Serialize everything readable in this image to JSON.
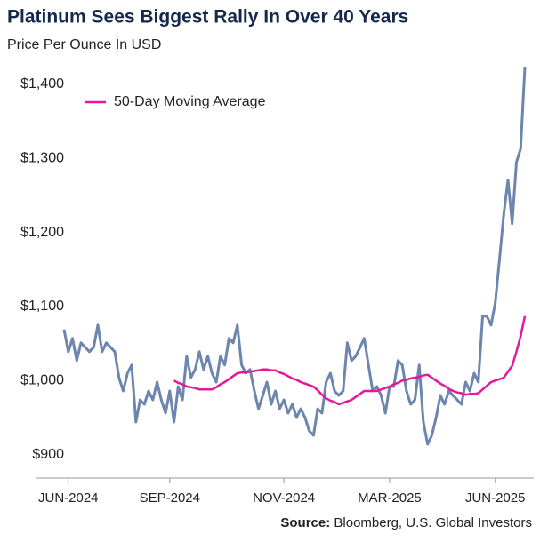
{
  "chart_data": {
    "type": "line",
    "title": "Platinum Sees Biggest Rally In Over 40 Years",
    "subtitle": "Price Per Ounce In USD",
    "source_label": "Source:",
    "source": "Bloomberg, U.S. Global Investors",
    "categories": [
      null,
      "JUN-2024",
      null,
      null,
      null,
      null,
      null,
      null,
      null,
      null,
      null,
      null,
      null,
      null,
      null,
      null,
      null,
      null,
      null,
      null,
      null,
      null,
      null,
      null,
      null,
      "SEP-2024",
      null,
      null,
      null,
      null,
      null,
      null,
      null,
      null,
      null,
      null,
      null,
      null,
      null,
      null,
      null,
      null,
      null,
      null,
      null,
      null,
      null,
      null,
      null,
      null,
      null,
      null,
      "NOV-2024",
      null,
      null,
      null,
      null,
      null,
      null,
      null,
      null,
      null,
      null,
      null,
      null,
      null,
      null,
      null,
      null,
      null,
      null,
      null,
      null,
      null,
      null,
      null,
      null,
      "MAR-2025",
      null,
      null,
      null,
      null,
      null,
      null,
      null,
      null,
      null,
      null,
      null,
      null,
      null,
      null,
      null,
      null,
      null,
      null,
      null,
      null,
      null,
      null,
      null,
      null,
      "JUN-2025",
      null,
      null,
      null,
      null,
      null,
      null,
      null
    ],
    "series": [
      {
        "color": "#6e86ad",
        "values": [
          1069,
          1039,
          1057,
          1027,
          1051,
          1045,
          1039,
          1045,
          1075,
          1039,
          1051,
          1045,
          1039,
          1004,
          986,
          1010,
          1021,
          944,
          974,
          968,
          986,
          974,
          998,
          974,
          956,
          986,
          944,
          992,
          974,
          1033,
          1004,
          1015,
          1039,
          1015,
          1033,
          1010,
          998,
          1033,
          1021,
          1057,
          1051,
          1075,
          1021,
          1010,
          1015,
          986,
          962,
          980,
          998,
          968,
          986,
          962,
          974,
          956,
          968,
          950,
          962,
          950,
          932,
          926,
          962,
          956,
          998,
          1010,
          986,
          980,
          986,
          1051,
          1027,
          1033,
          1045,
          1057,
          1021,
          986,
          992,
          980,
          956,
          992,
          992,
          1027,
          1021,
          986,
          968,
          974,
          1021,
          944,
          914,
          926,
          950,
          980,
          968,
          986,
          980,
          974,
          968,
          998,
          986,
          1010,
          998,
          1087,
          1087,
          1075,
          1105,
          1164,
          1224,
          1271,
          1212,
          1295,
          1313,
          1424
        ]
      },
      {
        "name": "50-Day Moving Average",
        "color": "#e5189b",
        "values": [
          null,
          null,
          null,
          null,
          null,
          null,
          null,
          null,
          null,
          null,
          null,
          null,
          null,
          null,
          null,
          null,
          null,
          null,
          null,
          null,
          null,
          null,
          null,
          null,
          null,
          null,
          1000,
          997,
          995,
          992,
          991,
          990,
          988,
          988,
          988,
          988,
          991,
          995,
          998,
          1002,
          1006,
          1010,
          1011,
          1011,
          1012,
          1013,
          1014,
          1015,
          1015,
          1014,
          1014,
          1011,
          1009,
          1006,
          1003,
          1001,
          998,
          996,
          994,
          992,
          987,
          981,
          976,
          973,
          971,
          968,
          970,
          972,
          974,
          978,
          982,
          986,
          986,
          986,
          986,
          988,
          990,
          992,
          995,
          997,
          1000,
          1001,
          1003,
          1004,
          1005,
          1007,
          1008,
          1004,
          1000,
          996,
          993,
          989,
          986,
          984,
          983,
          981,
          982,
          982,
          983,
          988,
          993,
          998,
          1000,
          1002,
          1004,
          1012,
          1020,
          1039,
          1060,
          1087
        ]
      }
    ],
    "ylim": [
      860,
      1430
    ],
    "yticks": [
      {
        "value": 900,
        "label": "$900"
      },
      {
        "value": 1000,
        "label": "$1,000"
      },
      {
        "value": 1100,
        "label": "$1,100"
      },
      {
        "value": 1200,
        "label": "$1,200"
      },
      {
        "value": 1300,
        "label": "$1,300"
      },
      {
        "value": 1400,
        "label": "$1,400"
      }
    ],
    "grid": false,
    "legend": "upper left"
  }
}
